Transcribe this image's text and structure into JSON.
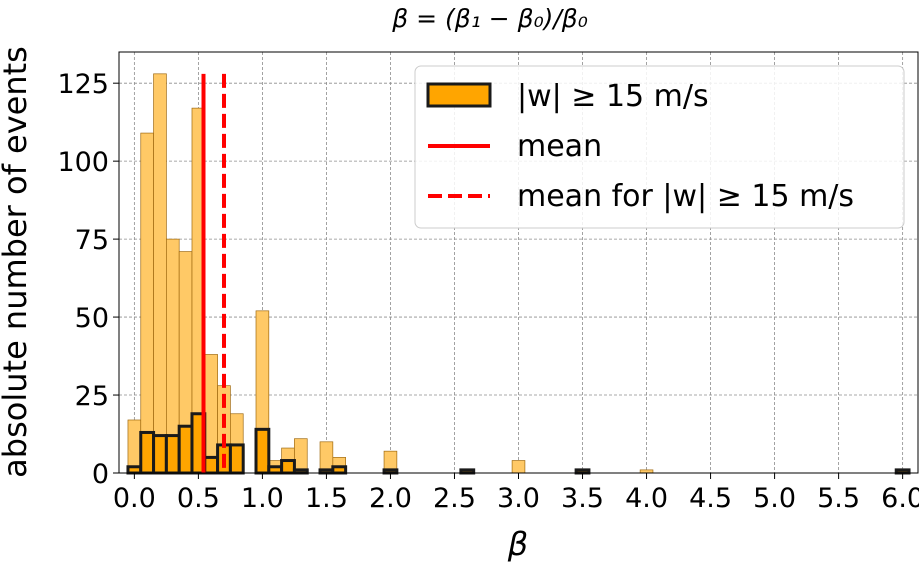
{
  "chart_data": {
    "type": "bar",
    "title": "β = (β₁ − β₀)/β₀",
    "xlabel": "β",
    "ylabel": "absolute number of events",
    "xlim": [
      -0.12,
      6.12
    ],
    "ylim": [
      0,
      135
    ],
    "bin_width": 0.1,
    "grid": true,
    "legend_position": "top-right",
    "xticks": [
      0.0,
      0.5,
      1.0,
      1.5,
      2.0,
      2.5,
      3.0,
      3.5,
      4.0,
      4.5,
      5.0,
      5.5,
      6.0
    ],
    "xtick_labels": [
      "0.0",
      "0.5",
      "1.0",
      "1.5",
      "2.0",
      "2.5",
      "3.0",
      "3.5",
      "4.0",
      "4.5",
      "5.0",
      "5.5",
      "6.0"
    ],
    "yticks": [
      0,
      25,
      50,
      75,
      100,
      125
    ],
    "ytick_labels": [
      "0",
      "25",
      "50",
      "75",
      "100",
      "125"
    ],
    "series": [
      {
        "style": "all",
        "color": "#ffc966",
        "x": [
          0.0,
          0.1,
          0.2,
          0.3,
          0.4,
          0.5,
          0.6,
          0.7,
          0.8,
          1.0,
          1.1,
          1.2,
          1.3,
          1.5,
          1.6,
          2.0,
          3.0,
          4.0
        ],
        "values": [
          17,
          109,
          128,
          75,
          71,
          117,
          38,
          28,
          19,
          52,
          4,
          8,
          11,
          10,
          5,
          7,
          4,
          1
        ]
      },
      {
        "name": "|w|  ≥  15 m/s",
        "style": "subset",
        "color": "#ffa500",
        "x": [
          0.0,
          0.1,
          0.2,
          0.3,
          0.4,
          0.5,
          0.6,
          0.7,
          0.8,
          1.0,
          1.1,
          1.2,
          1.3,
          1.5,
          1.6,
          2.0,
          2.6,
          3.5,
          6.0
        ],
        "values": [
          2,
          13,
          12,
          12,
          15,
          19,
          5,
          9,
          9,
          14,
          2,
          4,
          1,
          1,
          2,
          1,
          1,
          1,
          1
        ]
      }
    ],
    "vlines": [
      {
        "name": "mean",
        "x": 0.54,
        "ymax": 128,
        "color": "#ff0000",
        "style": "solid"
      },
      {
        "name": "mean for |w|  ≥  15 m/s",
        "x": 0.7,
        "ymax": 128,
        "color": "#ff0000",
        "style": "dashed"
      }
    ]
  }
}
